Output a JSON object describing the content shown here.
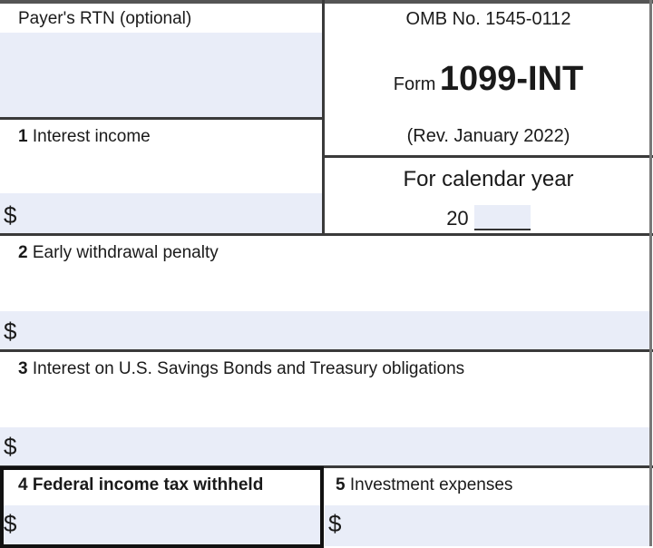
{
  "form": {
    "payer_rtn_label": "Payer's RTN (optional)",
    "omb": "OMB No. 1545-0112",
    "form_word": "Form",
    "form_number": "1099-INT",
    "revision": "(Rev. January 2022)",
    "calendar_year_label": "For calendar year",
    "year_prefix": "20",
    "currency": "$",
    "boxes": [
      {
        "num": "1",
        "label": "Interest income"
      },
      {
        "num": "2",
        "label": "Early withdrawal penalty"
      },
      {
        "num": "3",
        "label": "Interest on U.S. Savings Bonds and Treasury obligations"
      },
      {
        "num": "4",
        "label": "Federal income tax withheld"
      },
      {
        "num": "5",
        "label": "Investment expenses"
      }
    ],
    "field_color": "#e9edf8"
  }
}
